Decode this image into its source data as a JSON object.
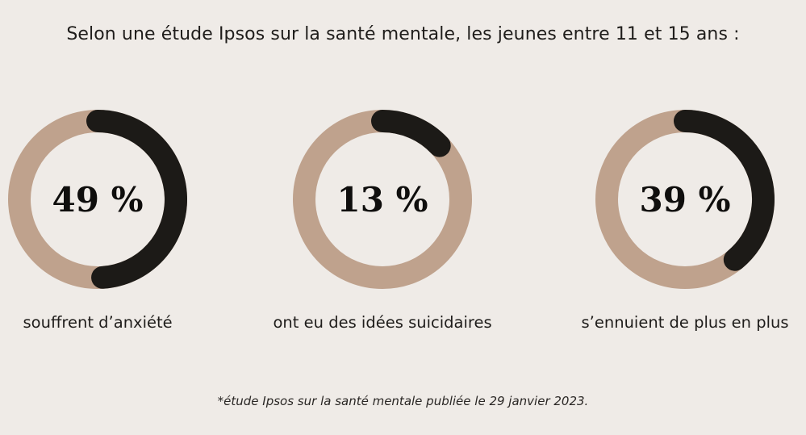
{
  "title": "Selon une étude Ipsos sur la santé mentale, les jeunes entre 11 et 15 ans :",
  "footnote": "*étude Ipsos sur la santé mentale publiée le 29 janvier 2023.",
  "colors": {
    "background": "#efebe7",
    "track": "#bfa28d",
    "fill": "#1c1a17",
    "text": "#1f1d1b"
  },
  "chart_data": [
    {
      "type": "pie",
      "variant": "donut",
      "value": 49,
      "max": 100,
      "label": "49 %",
      "caption": "souffrent d’anxiété"
    },
    {
      "type": "pie",
      "variant": "donut",
      "value": 13,
      "max": 100,
      "label": "13 %",
      "caption": "ont eu des idées suicidaires"
    },
    {
      "type": "pie",
      "variant": "donut",
      "value": 39,
      "max": 100,
      "label": "39 %",
      "caption": "s’ennuient de plus en plus"
    }
  ]
}
